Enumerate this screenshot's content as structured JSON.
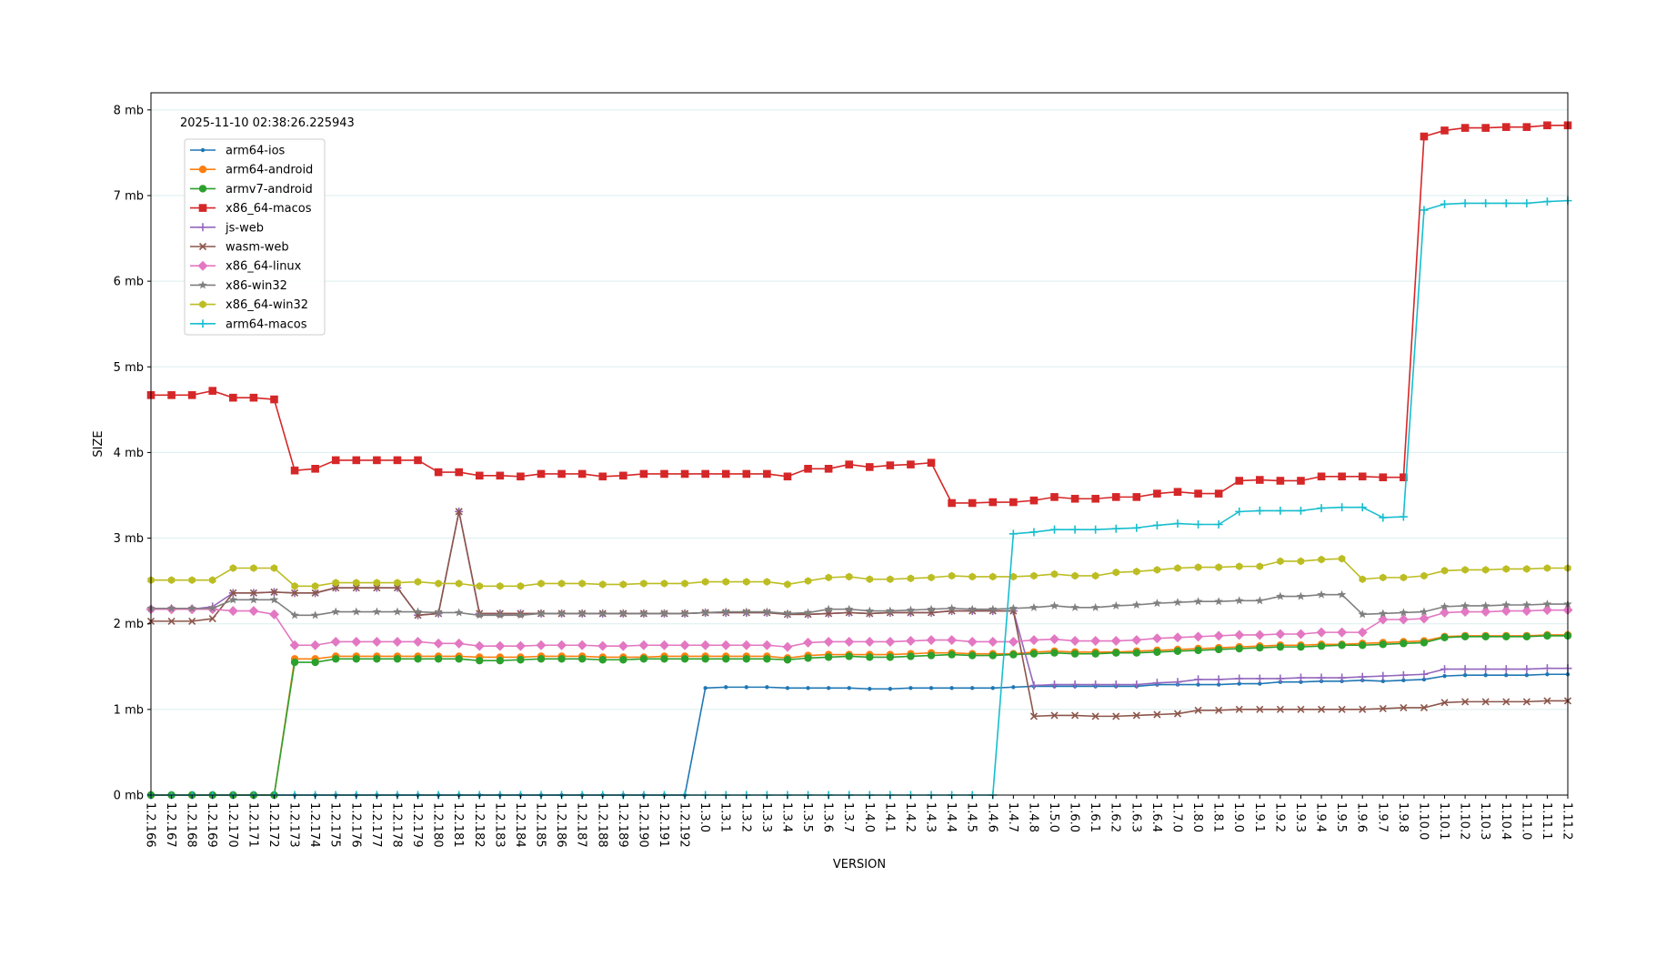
{
  "chart_data": {
    "type": "line",
    "annotation": "2025-11-10 02:38:26.225943",
    "xlabel": "VERSION",
    "ylabel": "SIZE",
    "ylim": [
      0,
      8.2
    ],
    "yticks": [
      {
        "value": 0,
        "label": "0 mb"
      },
      {
        "value": 1,
        "label": "1 mb"
      },
      {
        "value": 2,
        "label": "2 mb"
      },
      {
        "value": 3,
        "label": "3 mb"
      },
      {
        "value": 4,
        "label": "4 mb"
      },
      {
        "value": 5,
        "label": "5 mb"
      },
      {
        "value": 6,
        "label": "6 mb"
      },
      {
        "value": 7,
        "label": "7 mb"
      },
      {
        "value": 8,
        "label": "8 mb"
      }
    ],
    "grid": "horizontal",
    "legend_position": "top-left",
    "categories": [
      "1.2.166",
      "1.2.167",
      "1.2.168",
      "1.2.169",
      "1.2.170",
      "1.2.171",
      "1.2.172",
      "1.2.173",
      "1.2.174",
      "1.2.175",
      "1.2.176",
      "1.2.177",
      "1.2.178",
      "1.2.179",
      "1.2.180",
      "1.2.181",
      "1.2.182",
      "1.2.183",
      "1.2.184",
      "1.2.185",
      "1.2.186",
      "1.2.187",
      "1.2.188",
      "1.2.189",
      "1.2.190",
      "1.2.191",
      "1.2.192",
      "1.3.0",
      "1.3.1",
      "1.3.2",
      "1.3.3",
      "1.3.4",
      "1.3.5",
      "1.3.6",
      "1.3.7",
      "1.4.0",
      "1.4.1",
      "1.4.2",
      "1.4.3",
      "1.4.4",
      "1.4.5",
      "1.4.6",
      "1.4.7",
      "1.4.8",
      "1.5.0",
      "1.6.0",
      "1.6.1",
      "1.6.2",
      "1.6.3",
      "1.6.4",
      "1.7.0",
      "1.8.0",
      "1.8.1",
      "1.9.0",
      "1.9.1",
      "1.9.2",
      "1.9.3",
      "1.9.4",
      "1.9.5",
      "1.9.6",
      "1.9.7",
      "1.9.8",
      "1.10.0",
      "1.10.1",
      "1.10.2",
      "1.10.3",
      "1.10.4",
      "1.11.0",
      "1.11.1",
      "1.11.2"
    ],
    "series": [
      {
        "name": "arm64-ios",
        "color": "#1f77b4",
        "marker": "point",
        "values": [
          0,
          0,
          0,
          0,
          0,
          0,
          0,
          0,
          0,
          0,
          0,
          0,
          0,
          0,
          0,
          0,
          0,
          0,
          0,
          0,
          0,
          0,
          0,
          0,
          0,
          0,
          0,
          1.25,
          1.26,
          1.26,
          1.26,
          1.25,
          1.25,
          1.25,
          1.25,
          1.24,
          1.24,
          1.25,
          1.25,
          1.25,
          1.25,
          1.25,
          1.26,
          1.27,
          1.27,
          1.27,
          1.27,
          1.27,
          1.27,
          1.29,
          1.29,
          1.29,
          1.29,
          1.3,
          1.3,
          1.32,
          1.32,
          1.33,
          1.33,
          1.34,
          1.33,
          1.34,
          1.35,
          1.39,
          1.4,
          1.4,
          1.4,
          1.4,
          1.41,
          1.41
        ]
      },
      {
        "name": "arm64-android",
        "color": "#ff7f0e",
        "marker": "circle",
        "values": [
          0,
          0,
          0,
          0,
          0,
          0,
          0,
          1.59,
          1.59,
          1.62,
          1.62,
          1.62,
          1.62,
          1.62,
          1.62,
          1.62,
          1.61,
          1.61,
          1.61,
          1.62,
          1.62,
          1.62,
          1.61,
          1.61,
          1.61,
          1.62,
          1.62,
          1.62,
          1.62,
          1.62,
          1.62,
          1.6,
          1.63,
          1.64,
          1.64,
          1.64,
          1.64,
          1.65,
          1.66,
          1.66,
          1.65,
          1.65,
          1.65,
          1.67,
          1.68,
          1.67,
          1.67,
          1.67,
          1.68,
          1.69,
          1.7,
          1.71,
          1.72,
          1.73,
          1.74,
          1.75,
          1.75,
          1.76,
          1.76,
          1.77,
          1.78,
          1.79,
          1.8,
          1.85,
          1.86,
          1.86,
          1.86,
          1.86,
          1.87,
          1.87
        ]
      },
      {
        "name": "armv7-android",
        "color": "#2ca02c",
        "marker": "circle",
        "values": [
          0,
          0,
          0,
          0,
          0,
          0,
          0,
          1.55,
          1.55,
          1.59,
          1.59,
          1.59,
          1.59,
          1.59,
          1.59,
          1.59,
          1.57,
          1.57,
          1.58,
          1.59,
          1.59,
          1.59,
          1.58,
          1.58,
          1.59,
          1.59,
          1.59,
          1.59,
          1.59,
          1.59,
          1.59,
          1.58,
          1.6,
          1.61,
          1.62,
          1.61,
          1.61,
          1.62,
          1.63,
          1.64,
          1.63,
          1.63,
          1.64,
          1.65,
          1.66,
          1.65,
          1.65,
          1.66,
          1.66,
          1.67,
          1.68,
          1.69,
          1.7,
          1.71,
          1.72,
          1.73,
          1.73,
          1.74,
          1.75,
          1.75,
          1.76,
          1.77,
          1.78,
          1.84,
          1.85,
          1.85,
          1.85,
          1.85,
          1.86,
          1.86
        ]
      },
      {
        "name": "x86_64-macos",
        "color": "#d62728",
        "marker": "square",
        "values": [
          4.67,
          4.67,
          4.67,
          4.72,
          4.64,
          4.64,
          4.62,
          3.79,
          3.81,
          3.91,
          3.91,
          3.91,
          3.91,
          3.91,
          3.77,
          3.77,
          3.73,
          3.73,
          3.72,
          3.75,
          3.75,
          3.75,
          3.72,
          3.73,
          3.75,
          3.75,
          3.75,
          3.75,
          3.75,
          3.75,
          3.75,
          3.72,
          3.81,
          3.81,
          3.86,
          3.83,
          3.85,
          3.86,
          3.88,
          3.41,
          3.41,
          3.42,
          3.42,
          3.44,
          3.48,
          3.46,
          3.46,
          3.48,
          3.48,
          3.52,
          3.54,
          3.52,
          3.52,
          3.67,
          3.68,
          3.67,
          3.67,
          3.72,
          3.72,
          3.72,
          3.71,
          3.71,
          7.69,
          7.76,
          7.79,
          7.79,
          7.8,
          7.8,
          7.82,
          7.82
        ]
      },
      {
        "name": "js-web",
        "color": "#9467bd",
        "marker": "plus",
        "values": [
          2.17,
          2.17,
          2.17,
          2.2,
          2.36,
          2.36,
          2.37,
          2.36,
          2.36,
          2.42,
          2.42,
          2.42,
          2.42,
          2.1,
          2.12,
          3.31,
          2.12,
          2.12,
          2.12,
          2.12,
          2.12,
          2.12,
          2.12,
          2.12,
          2.12,
          2.12,
          2.12,
          2.13,
          2.13,
          2.13,
          2.13,
          2.11,
          2.11,
          2.12,
          2.13,
          2.12,
          2.13,
          2.13,
          2.13,
          2.15,
          2.15,
          2.15,
          2.15,
          1.28,
          1.29,
          1.29,
          1.29,
          1.29,
          1.29,
          1.31,
          1.32,
          1.35,
          1.35,
          1.36,
          1.36,
          1.36,
          1.37,
          1.37,
          1.37,
          1.38,
          1.39,
          1.4,
          1.41,
          1.47,
          1.47,
          1.47,
          1.47,
          1.47,
          1.48,
          1.48
        ]
      },
      {
        "name": "wasm-web",
        "color": "#8c564b",
        "marker": "x",
        "values": [
          2.03,
          2.03,
          2.03,
          2.06,
          2.36,
          2.36,
          2.37,
          2.36,
          2.36,
          2.42,
          2.42,
          2.42,
          2.42,
          2.1,
          2.12,
          3.31,
          2.12,
          2.12,
          2.12,
          2.12,
          2.12,
          2.12,
          2.12,
          2.12,
          2.12,
          2.12,
          2.12,
          2.13,
          2.13,
          2.13,
          2.13,
          2.11,
          2.11,
          2.12,
          2.13,
          2.12,
          2.13,
          2.13,
          2.13,
          2.15,
          2.15,
          2.15,
          2.15,
          0.92,
          0.93,
          0.93,
          0.92,
          0.92,
          0.93,
          0.94,
          0.95,
          0.99,
          0.99,
          1.0,
          1.0,
          1.0,
          1.0,
          1.0,
          1.0,
          1.0,
          1.01,
          1.02,
          1.02,
          1.08,
          1.09,
          1.09,
          1.09,
          1.09,
          1.1,
          1.1
        ]
      },
      {
        "name": "x86_64-linux",
        "color": "#e377c2",
        "marker": "diamond",
        "values": [
          2.17,
          2.17,
          2.17,
          2.17,
          2.15,
          2.15,
          2.11,
          1.75,
          1.75,
          1.79,
          1.79,
          1.79,
          1.79,
          1.79,
          1.77,
          1.77,
          1.74,
          1.74,
          1.74,
          1.75,
          1.75,
          1.75,
          1.74,
          1.74,
          1.75,
          1.75,
          1.75,
          1.75,
          1.75,
          1.75,
          1.75,
          1.73,
          1.78,
          1.79,
          1.79,
          1.79,
          1.79,
          1.8,
          1.81,
          1.81,
          1.79,
          1.79,
          1.79,
          1.81,
          1.82,
          1.8,
          1.8,
          1.8,
          1.81,
          1.83,
          1.84,
          1.85,
          1.86,
          1.87,
          1.87,
          1.88,
          1.88,
          1.9,
          1.9,
          1.9,
          2.05,
          2.05,
          2.06,
          2.13,
          2.14,
          2.14,
          2.15,
          2.15,
          2.16,
          2.16
        ]
      },
      {
        "name": "x86-win32",
        "color": "#7f7f7f",
        "marker": "star",
        "values": [
          2.18,
          2.18,
          2.18,
          2.18,
          2.28,
          2.28,
          2.28,
          2.1,
          2.1,
          2.14,
          2.14,
          2.14,
          2.14,
          2.14,
          2.13,
          2.13,
          2.1,
          2.1,
          2.1,
          2.12,
          2.12,
          2.12,
          2.12,
          2.12,
          2.12,
          2.12,
          2.12,
          2.13,
          2.14,
          2.14,
          2.14,
          2.12,
          2.13,
          2.17,
          2.17,
          2.15,
          2.15,
          2.16,
          2.17,
          2.18,
          2.17,
          2.17,
          2.18,
          2.19,
          2.21,
          2.19,
          2.19,
          2.21,
          2.22,
          2.24,
          2.25,
          2.26,
          2.26,
          2.27,
          2.27,
          2.32,
          2.32,
          2.34,
          2.34,
          2.11,
          2.12,
          2.13,
          2.14,
          2.2,
          2.21,
          2.21,
          2.22,
          2.22,
          2.23,
          2.23
        ]
      },
      {
        "name": "x86_64-win32",
        "color": "#bcbd22",
        "marker": "hexagon",
        "values": [
          2.51,
          2.51,
          2.51,
          2.51,
          2.65,
          2.65,
          2.65,
          2.44,
          2.44,
          2.48,
          2.48,
          2.48,
          2.48,
          2.49,
          2.47,
          2.47,
          2.44,
          2.44,
          2.44,
          2.47,
          2.47,
          2.47,
          2.46,
          2.46,
          2.47,
          2.47,
          2.47,
          2.49,
          2.49,
          2.49,
          2.49,
          2.46,
          2.5,
          2.54,
          2.55,
          2.52,
          2.52,
          2.53,
          2.54,
          2.56,
          2.55,
          2.55,
          2.55,
          2.56,
          2.58,
          2.56,
          2.56,
          2.6,
          2.61,
          2.63,
          2.65,
          2.66,
          2.66,
          2.67,
          2.67,
          2.73,
          2.73,
          2.75,
          2.76,
          2.52,
          2.54,
          2.54,
          2.56,
          2.62,
          2.63,
          2.63,
          2.64,
          2.64,
          2.65,
          2.65
        ]
      },
      {
        "name": "arm64-macos",
        "color": "#17becf",
        "marker": "plus",
        "values": [
          0,
          0,
          0,
          0,
          0,
          0,
          0,
          0,
          0,
          0,
          0,
          0,
          0,
          0,
          0,
          0,
          0,
          0,
          0,
          0,
          0,
          0,
          0,
          0,
          0,
          0,
          0,
          0,
          0,
          0,
          0,
          0,
          0,
          0,
          0,
          0,
          0,
          0,
          0,
          0,
          0,
          0,
          3.05,
          3.07,
          3.1,
          3.1,
          3.1,
          3.11,
          3.12,
          3.15,
          3.17,
          3.16,
          3.16,
          3.31,
          3.32,
          3.32,
          3.32,
          3.35,
          3.36,
          3.36,
          3.24,
          3.25,
          6.83,
          6.9,
          6.91,
          6.91,
          6.91,
          6.91,
          6.93,
          6.94
        ]
      }
    ]
  }
}
